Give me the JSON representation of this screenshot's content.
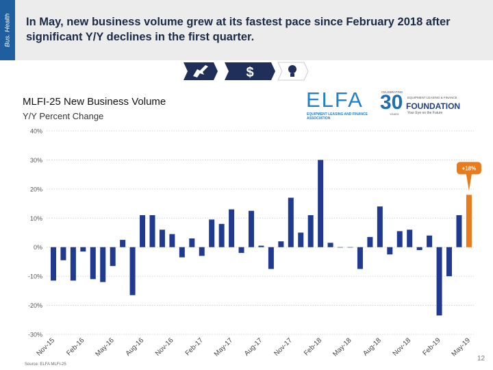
{
  "side_tab": "Bus. Health",
  "headline": "In May, new business volume grew at its fastest pace since February 2018 after significant Y/Y declines in the first quarter.",
  "icons": [
    "plane-icon",
    "dollar-icon",
    "lightbulb-icon"
  ],
  "logos": {
    "elfa": {
      "name": "ELFA",
      "subtitle": "EQUIPMENT LEASING AND FINANCE ASSOCIATION"
    },
    "foundation": {
      "top": "CELEBRATING",
      "number": "30",
      "years": "YEARS",
      "sub1": "EQUIPMENT LEASING & FINANCE",
      "name": "FOUNDATION",
      "sub2": "Your Eye on the Future"
    }
  },
  "source": "Source: ELFA MLFI-25",
  "page_number": "12",
  "colors": {
    "bar": "#1f3a8f",
    "highlight": "#e87b1c",
    "header_bg": "#ececec",
    "side_tab": "#1f5f9f"
  },
  "chart_data": {
    "type": "bar",
    "title": "MLFI-25 New Business Volume",
    "subtitle": "Y/Y Percent Change",
    "ylim": [
      -30,
      40
    ],
    "yticks": [
      -30,
      -20,
      -10,
      0,
      10,
      20,
      30,
      40
    ],
    "ytick_labels": [
      "-30%",
      "-20%",
      "-10%",
      "0%",
      "10%",
      "20%",
      "30%",
      "40%"
    ],
    "grid": true,
    "categories": [
      "Nov-15",
      "Dec-15",
      "Jan-16",
      "Feb-16",
      "Mar-16",
      "Apr-16",
      "May-16",
      "Jun-16",
      "Jul-16",
      "Aug-16",
      "Sep-16",
      "Oct-16",
      "Nov-16",
      "Dec-16",
      "Jan-17",
      "Feb-17",
      "Mar-17",
      "Apr-17",
      "May-17",
      "Jun-17",
      "Jul-17",
      "Aug-17",
      "Sep-17",
      "Oct-17",
      "Nov-17",
      "Dec-17",
      "Jan-18",
      "Feb-18",
      "Mar-18",
      "Apr-18",
      "May-18",
      "Jun-18",
      "Jul-18",
      "Aug-18",
      "Sep-18",
      "Oct-18",
      "Nov-18",
      "Dec-18",
      "Jan-19",
      "Feb-19",
      "Mar-19",
      "Apr-19",
      "May-19"
    ],
    "x_tick_labels": [
      "Nov-15",
      "Feb-16",
      "May-16",
      "Aug-16",
      "Nov-16",
      "Feb-17",
      "May-17",
      "Aug-17",
      "Nov-17",
      "Feb-18",
      "May-18",
      "Aug-18",
      "Nov-18",
      "Feb-19",
      "May-19"
    ],
    "values": [
      -11.5,
      -4.5,
      -11.5,
      -1.5,
      -11,
      -12,
      -6.5,
      2.5,
      -16.5,
      11,
      11,
      6,
      4.5,
      -3.5,
      3,
      -3,
      9.5,
      8,
      13,
      -2,
      12.5,
      0.5,
      -7.5,
      2,
      17,
      5,
      11,
      30,
      1.5,
      0,
      0,
      -7.5,
      3.5,
      14,
      -2.5,
      5.5,
      6,
      -1,
      4,
      -23.5,
      -10,
      11,
      18
    ],
    "highlight_index": 42,
    "annotation": {
      "label": "+18%",
      "index": 42
    }
  }
}
